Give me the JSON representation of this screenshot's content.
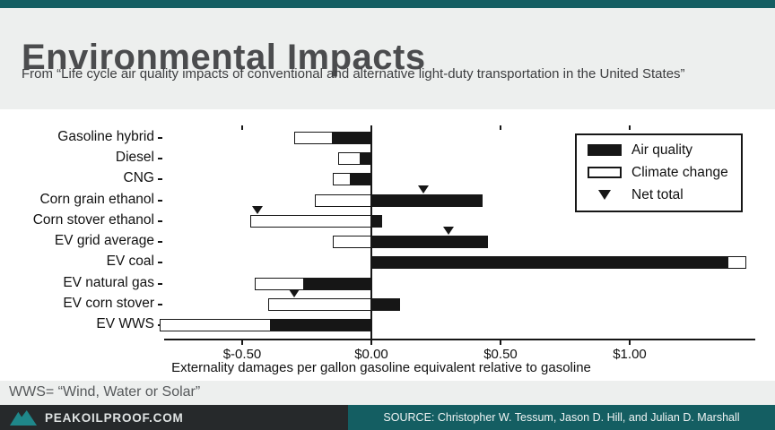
{
  "header": {
    "title": "Environmental Impacts",
    "subtitle": "From “Life cycle air quality impacts of conventional and alternative light-duty transportation in the United States”"
  },
  "note": "WWS= “Wind, Water or Solar”",
  "footer": {
    "site": "PEAKOILPROOF.COM",
    "source": "SOURCE: Christopher W. Tessum, Jason D. Hill, and Julian D. Marshall",
    "logo": "mountain-peaks-icon"
  },
  "colors": {
    "accent_teal": "#145e62",
    "logo_teal": "#1f878a",
    "footer_charcoal": "#26292b",
    "bar_black": "#161616",
    "slide_background": "#edefee",
    "title_gray": "#4b4c4e"
  },
  "chart_data": {
    "type": "bar",
    "orientation": "horizontal",
    "stacked": true,
    "title": "",
    "xlabel": "Externality damages per gallon gasoline equivalent relative to gasoline",
    "ylabel": "",
    "xlim": [
      -0.85,
      1.5
    ],
    "grid": false,
    "legend_position": "top-right",
    "x_ticks": [
      -0.5,
      0,
      0.5,
      1.0
    ],
    "x_tick_labels": [
      "$-0.50",
      "$0.00",
      "$0.50",
      "$1.00"
    ],
    "categories": [
      "Gasoline hybrid",
      "Diesel",
      "CNG",
      "Corn grain ethanol",
      "Corn stover ethanol",
      "EV grid average",
      "EV coal",
      "EV natural gas",
      "EV corn stover",
      "EV WWS"
    ],
    "series": [
      {
        "name": "Air quality",
        "values": [
          -0.15,
          -0.04,
          -0.08,
          0.43,
          0.04,
          0.45,
          1.38,
          -0.26,
          0.11,
          -0.39
        ]
      },
      {
        "name": "Climate change",
        "values": [
          -0.15,
          -0.09,
          -0.07,
          -0.22,
          -0.47,
          -0.15,
          0.07,
          -0.19,
          -0.4,
          -0.43
        ]
      }
    ],
    "net_total_markers": [
      {
        "category": "Corn grain ethanol",
        "value": 0.2
      },
      {
        "category": "Corn stover ethanol",
        "value": -0.44
      },
      {
        "category": "EV grid average",
        "value": 0.3
      },
      {
        "category": "EV corn stover",
        "value": -0.3
      }
    ],
    "legend": [
      {
        "label": "Air quality",
        "swatch": "filled-black"
      },
      {
        "label": "Climate change",
        "swatch": "outlined-white"
      },
      {
        "label": "Net total",
        "swatch": "triangle-down"
      }
    ]
  }
}
